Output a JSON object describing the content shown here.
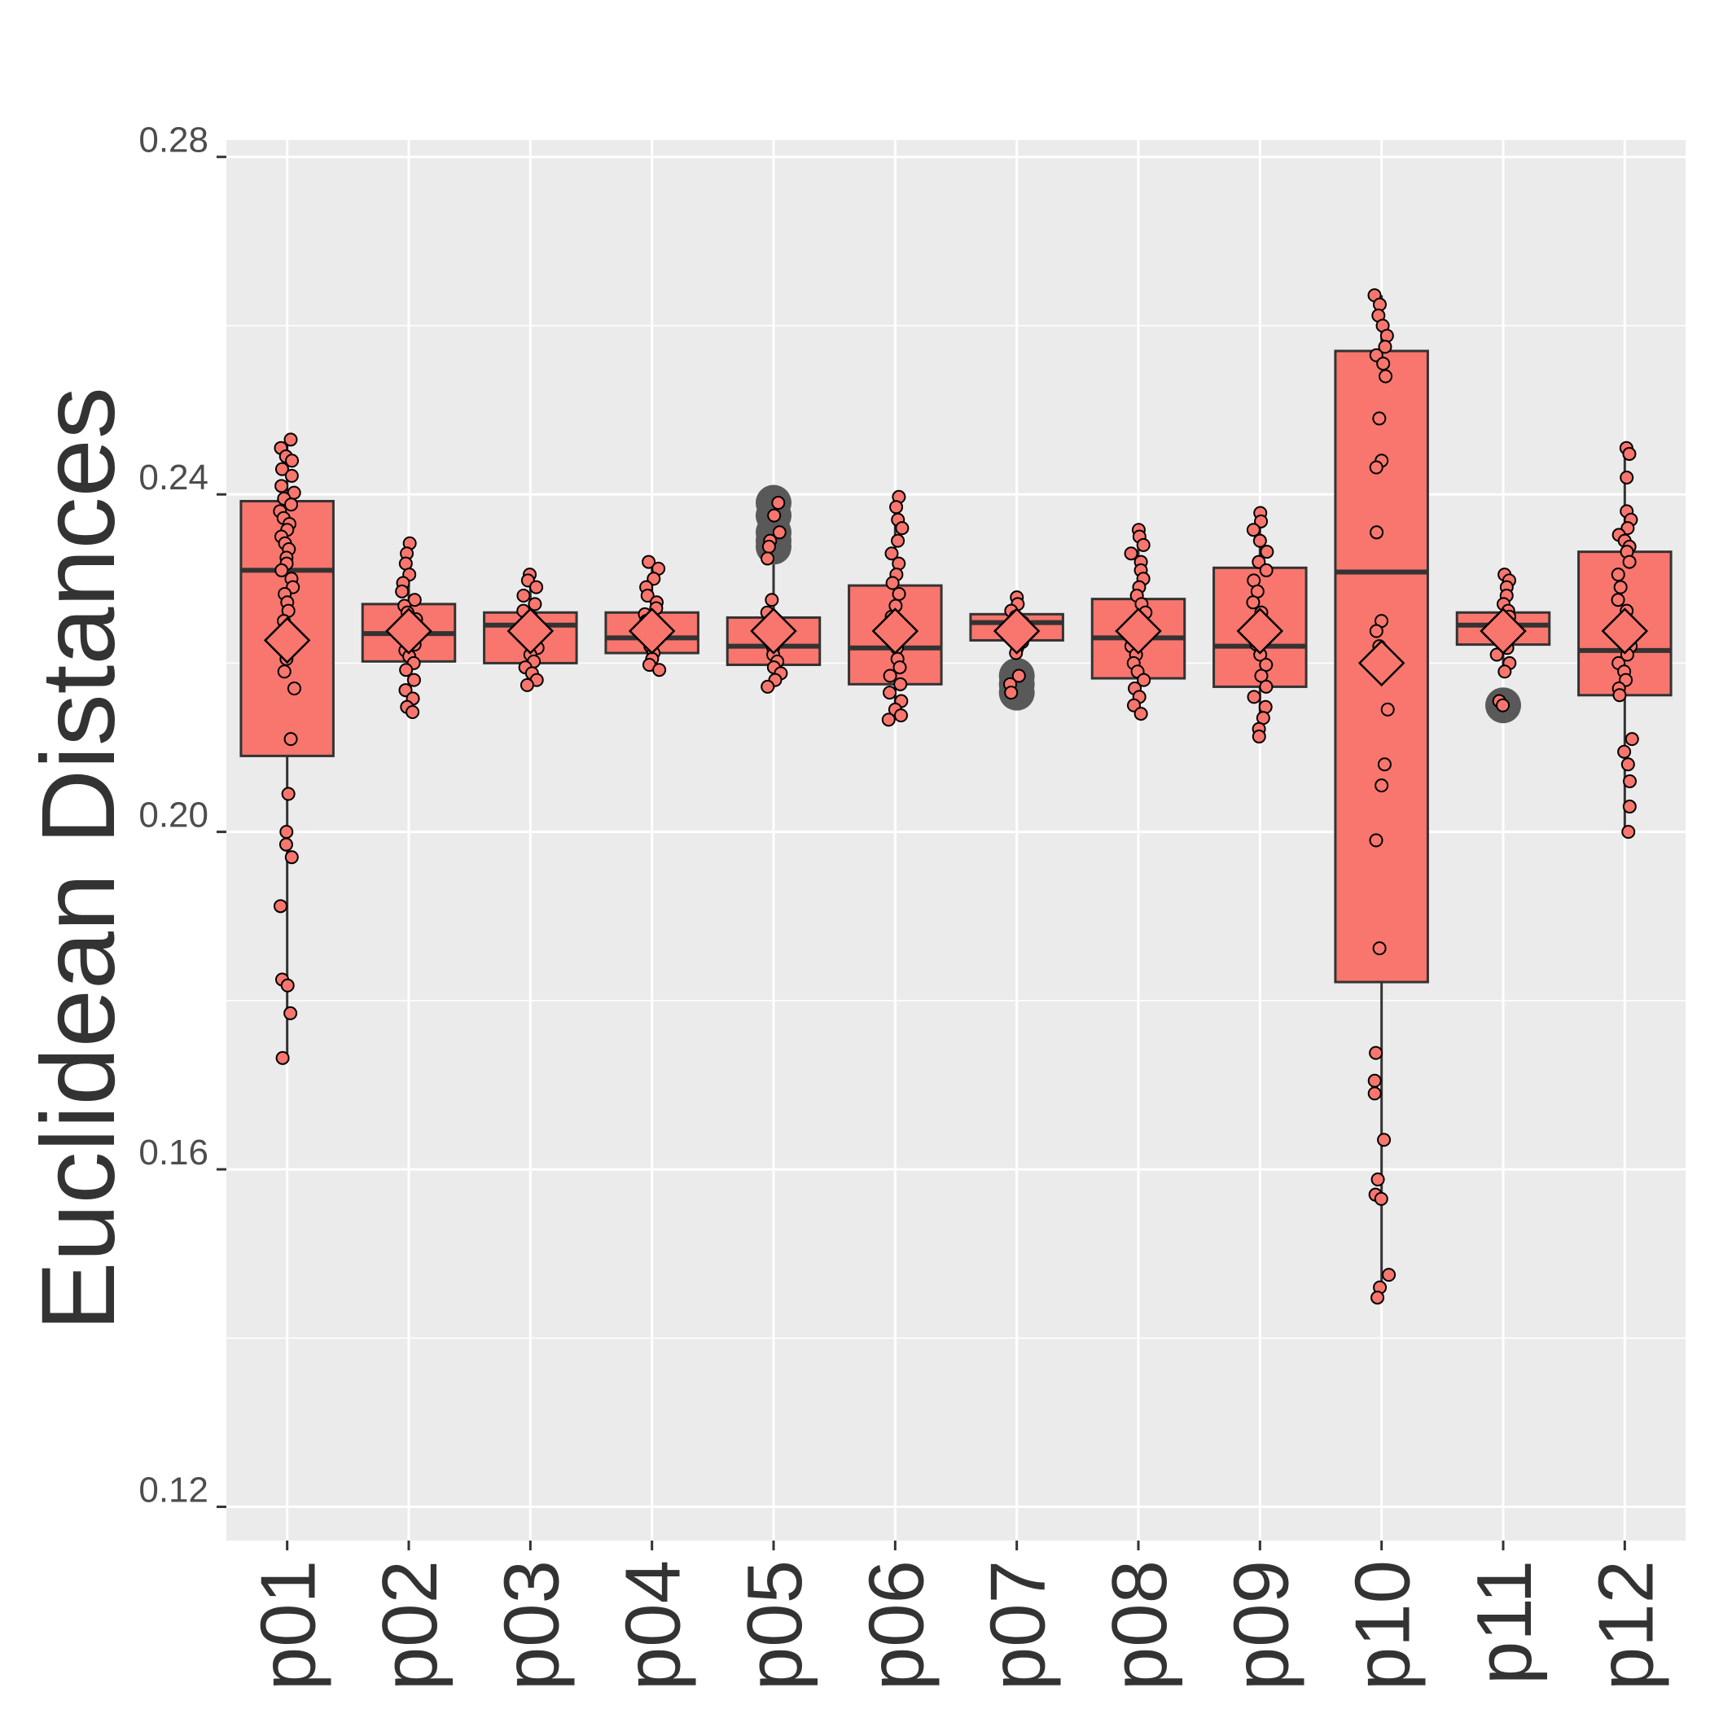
{
  "chart_data": {
    "type": "box",
    "title": "",
    "xlabel": "",
    "ylabel": "Euclidean Distances",
    "ylim": [
      0.116,
      0.282
    ],
    "yticks": [
      0.12,
      0.16,
      0.2,
      0.24,
      0.28
    ],
    "ytick_labels": [
      "0.12",
      "0.16",
      "0.20",
      "0.24",
      "0.28"
    ],
    "grid": true,
    "legend": "none",
    "fill_color": "#F8766D",
    "panel_color": "#EBEBEB",
    "outline_color": "#333333",
    "outlier_color": "#595959",
    "categories": [
      "p01",
      "p02",
      "p03",
      "p04",
      "p05",
      "p06",
      "p07",
      "p08",
      "p09",
      "p10",
      "p11",
      "p12"
    ],
    "boxes": [
      {
        "q1": 0.209,
        "median": 0.231,
        "q3": 0.2392,
        "whisker_low": 0.173,
        "whisker_high": 0.2464,
        "mean": 0.2227
      },
      {
        "q1": 0.2202,
        "median": 0.2235,
        "q3": 0.227,
        "whisker_low": 0.2145,
        "whisker_high": 0.2342,
        "mean": 0.2238
      },
      {
        "q1": 0.22,
        "median": 0.2245,
        "q3": 0.226,
        "whisker_low": 0.2172,
        "whisker_high": 0.2307,
        "mean": 0.2238
      },
      {
        "q1": 0.2212,
        "median": 0.223,
        "q3": 0.226,
        "whisker_low": 0.219,
        "whisker_high": 0.232,
        "mean": 0.2238
      },
      {
        "q1": 0.2198,
        "median": 0.222,
        "q3": 0.2254,
        "whisker_low": 0.217,
        "whisker_high": 0.2324,
        "mean": 0.2238
      },
      {
        "q1": 0.2175,
        "median": 0.2218,
        "q3": 0.2292,
        "whisker_low": 0.2133,
        "whisker_high": 0.2397,
        "mean": 0.2238
      },
      {
        "q1": 0.2227,
        "median": 0.2248,
        "q3": 0.2258,
        "whisker_low": 0.2212,
        "whisker_high": 0.2278,
        "mean": 0.2238
      },
      {
        "q1": 0.2182,
        "median": 0.223,
        "q3": 0.2276,
        "whisker_low": 0.214,
        "whisker_high": 0.2358,
        "mean": 0.2238
      },
      {
        "q1": 0.2172,
        "median": 0.222,
        "q3": 0.2313,
        "whisker_low": 0.2113,
        "whisker_high": 0.2378,
        "mean": 0.2238
      },
      {
        "q1": 0.1822,
        "median": 0.2308,
        "q3": 0.257,
        "whisker_low": 0.1448,
        "whisker_high": 0.2636,
        "mean": 0.22
      },
      {
        "q1": 0.2222,
        "median": 0.2245,
        "q3": 0.226,
        "whisker_low": 0.219,
        "whisker_high": 0.2305,
        "mean": 0.2238
      },
      {
        "q1": 0.2162,
        "median": 0.2215,
        "q3": 0.2332,
        "whisker_low": 0.2,
        "whisker_high": 0.2455,
        "mean": 0.2238
      }
    ],
    "outliers": [
      [],
      [],
      [],
      [],
      [
        0.239,
        0.2375,
        0.2355,
        0.2345,
        0.2338
      ],
      [],
      [
        0.2185,
        0.2175,
        0.2165
      ],
      [],
      [],
      [],
      [
        0.215
      ],
      []
    ],
    "points": [
      [
        0.2465,
        0.2455,
        0.2445,
        0.244,
        0.243,
        0.2422,
        0.241,
        0.2402,
        0.2395,
        0.2388,
        0.238,
        0.2372,
        0.2365,
        0.2358,
        0.235,
        0.2342,
        0.2335,
        0.2325,
        0.2318,
        0.231,
        0.23,
        0.229,
        0.2282,
        0.2272,
        0.2262,
        0.225,
        0.2238,
        0.222,
        0.2205,
        0.219,
        0.217,
        0.211,
        0.2045,
        0.2,
        0.1985,
        0.197,
        0.1912,
        0.1825,
        0.1818,
        0.1785,
        0.1732
      ],
      [
        0.2342,
        0.233,
        0.2318,
        0.2305,
        0.2295,
        0.2285,
        0.2275,
        0.2268,
        0.226,
        0.2252,
        0.2245,
        0.2238,
        0.223,
        0.2222,
        0.2215,
        0.2208,
        0.22,
        0.2192,
        0.218,
        0.2168,
        0.2158,
        0.2148,
        0.2142
      ],
      [
        0.2305,
        0.2298,
        0.229,
        0.228,
        0.227,
        0.2262,
        0.2255,
        0.2248,
        0.224,
        0.2232,
        0.2225,
        0.2218,
        0.221,
        0.2202,
        0.2195,
        0.2188,
        0.218,
        0.2174
      ],
      [
        0.232,
        0.2312,
        0.23,
        0.229,
        0.228,
        0.2272,
        0.2265,
        0.2258,
        0.225,
        0.2242,
        0.2235,
        0.2228,
        0.222,
        0.2212,
        0.2205,
        0.2198,
        0.2192
      ],
      [
        0.239,
        0.2375,
        0.2355,
        0.2345,
        0.2338,
        0.2324,
        0.2275,
        0.226,
        0.225,
        0.224,
        0.2232,
        0.2225,
        0.2218,
        0.221,
        0.2202,
        0.2195,
        0.2188,
        0.218,
        0.2172
      ],
      [
        0.2397,
        0.2385,
        0.237,
        0.236,
        0.2345,
        0.233,
        0.2318,
        0.2305,
        0.2295,
        0.2282,
        0.2268,
        0.2255,
        0.2242,
        0.223,
        0.2218,
        0.2205,
        0.2195,
        0.2185,
        0.2175,
        0.2165,
        0.2155,
        0.2145,
        0.2138,
        0.2133
      ],
      [
        0.2278,
        0.227,
        0.2262,
        0.2255,
        0.2248,
        0.224,
        0.2232,
        0.2225,
        0.2218,
        0.2212,
        0.2185,
        0.2175,
        0.2165
      ],
      [
        0.2358,
        0.235,
        0.234,
        0.233,
        0.232,
        0.231,
        0.23,
        0.229,
        0.228,
        0.227,
        0.226,
        0.225,
        0.224,
        0.223,
        0.222,
        0.221,
        0.22,
        0.219,
        0.218,
        0.217,
        0.216,
        0.215,
        0.214
      ],
      [
        0.2378,
        0.2368,
        0.2358,
        0.2345,
        0.2332,
        0.232,
        0.231,
        0.2298,
        0.2285,
        0.2272,
        0.226,
        0.2248,
        0.2235,
        0.2222,
        0.221,
        0.2198,
        0.2185,
        0.2172,
        0.216,
        0.2148,
        0.2135,
        0.2122,
        0.2113
      ],
      [
        0.2636,
        0.2625,
        0.2612,
        0.26,
        0.2588,
        0.2575,
        0.2565,
        0.2555,
        0.254,
        0.249,
        0.244,
        0.2432,
        0.2355,
        0.225,
        0.2238,
        0.222,
        0.2145,
        0.208,
        0.2055,
        0.199,
        0.1862,
        0.1738,
        0.1705,
        0.169,
        0.1635,
        0.1588,
        0.157,
        0.1565,
        0.1475,
        0.146,
        0.1448
      ],
      [
        0.2305,
        0.2298,
        0.229,
        0.228,
        0.227,
        0.2262,
        0.2255,
        0.2248,
        0.224,
        0.2232,
        0.2225,
        0.2218,
        0.221,
        0.22,
        0.219,
        0.2155,
        0.215
      ],
      [
        0.2455,
        0.2448,
        0.242,
        0.238,
        0.237,
        0.236,
        0.2352,
        0.2345,
        0.2338,
        0.2332,
        0.232,
        0.2305,
        0.229,
        0.2275,
        0.2262,
        0.225,
        0.224,
        0.223,
        0.222,
        0.221,
        0.22,
        0.219,
        0.218,
        0.217,
        0.2162,
        0.211,
        0.2095,
        0.208,
        0.206,
        0.203,
        0.2
      ]
    ]
  }
}
